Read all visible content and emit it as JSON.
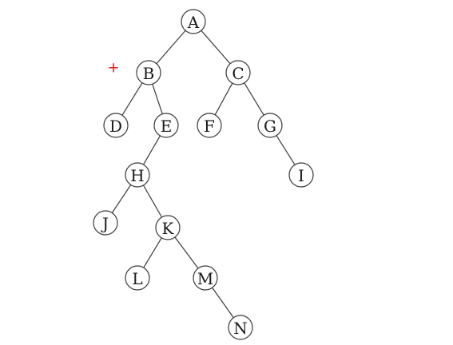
{
  "tree": {
    "nodes": [
      {
        "id": "A",
        "label": "A"
      },
      {
        "id": "B",
        "label": "B"
      },
      {
        "id": "C",
        "label": "C"
      },
      {
        "id": "D",
        "label": "D"
      },
      {
        "id": "E",
        "label": "E"
      },
      {
        "id": "F",
        "label": "F"
      },
      {
        "id": "G",
        "label": "G"
      },
      {
        "id": "H",
        "label": "H"
      },
      {
        "id": "I",
        "label": "I"
      },
      {
        "id": "J",
        "label": "J"
      },
      {
        "id": "K",
        "label": "K"
      },
      {
        "id": "L",
        "label": "L"
      },
      {
        "id": "M",
        "label": "M"
      },
      {
        "id": "N",
        "label": "N"
      }
    ],
    "edges": [
      [
        "A",
        "B"
      ],
      [
        "A",
        "C"
      ],
      [
        "B",
        "D"
      ],
      [
        "B",
        "E"
      ],
      [
        "C",
        "F"
      ],
      [
        "C",
        "G"
      ],
      [
        "E",
        "H"
      ],
      [
        "G",
        "I"
      ],
      [
        "H",
        "J"
      ],
      [
        "H",
        "K"
      ],
      [
        "K",
        "L"
      ],
      [
        "K",
        "M"
      ],
      [
        "M",
        "N"
      ]
    ]
  },
  "marker": {
    "symbol": "+",
    "color": "#e02020"
  }
}
